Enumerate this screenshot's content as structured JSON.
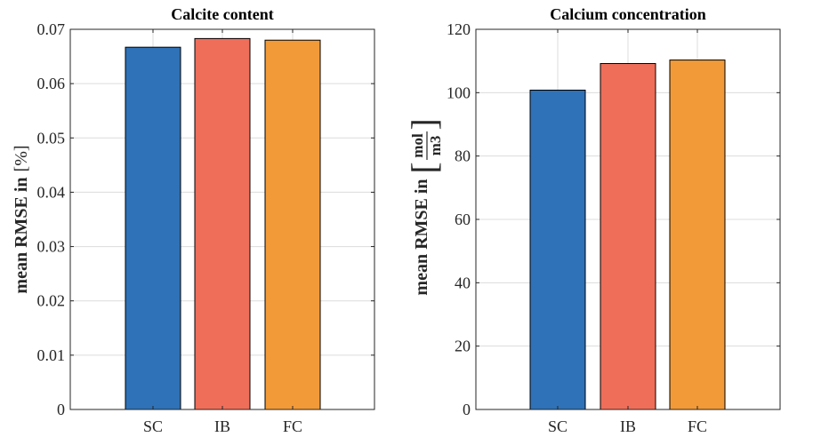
{
  "chart_data": [
    {
      "type": "bar",
      "title": "Calcite content",
      "categories": [
        "SC",
        "IB",
        "FC"
      ],
      "values": [
        0.0667,
        0.0683,
        0.068
      ],
      "colors": [
        "#2f72b7",
        "#ef6e5a",
        "#f29a38"
      ],
      "ylim": [
        0,
        0.07
      ],
      "yticks": [
        0,
        0.01,
        0.02,
        0.03,
        0.04,
        0.05,
        0.06,
        0.07
      ],
      "ytick_labels": [
        "0",
        "0.01",
        "0.02",
        "0.03",
        "0.04",
        "0.05",
        "0.06",
        "0.07"
      ],
      "ylabel_prefix": "mean RMSE in",
      "ylabel_unit": "%",
      "xlabel": "",
      "grid": true
    },
    {
      "type": "bar",
      "title": "Calcium concentration",
      "categories": [
        "SC",
        "IB",
        "FC"
      ],
      "values": [
        100.8,
        109.2,
        110.3
      ],
      "colors": [
        "#2f72b7",
        "#ef6e5a",
        "#f29a38"
      ],
      "ylim": [
        0,
        120
      ],
      "yticks": [
        0,
        20,
        40,
        60,
        80,
        100,
        120
      ],
      "ytick_labels": [
        "0",
        "20",
        "40",
        "60",
        "80",
        "100",
        "120"
      ],
      "ylabel_prefix": "mean RMSE in",
      "ylabel_unit_num": "mol",
      "ylabel_unit_den": "m3",
      "xlabel": "",
      "grid": true
    }
  ]
}
